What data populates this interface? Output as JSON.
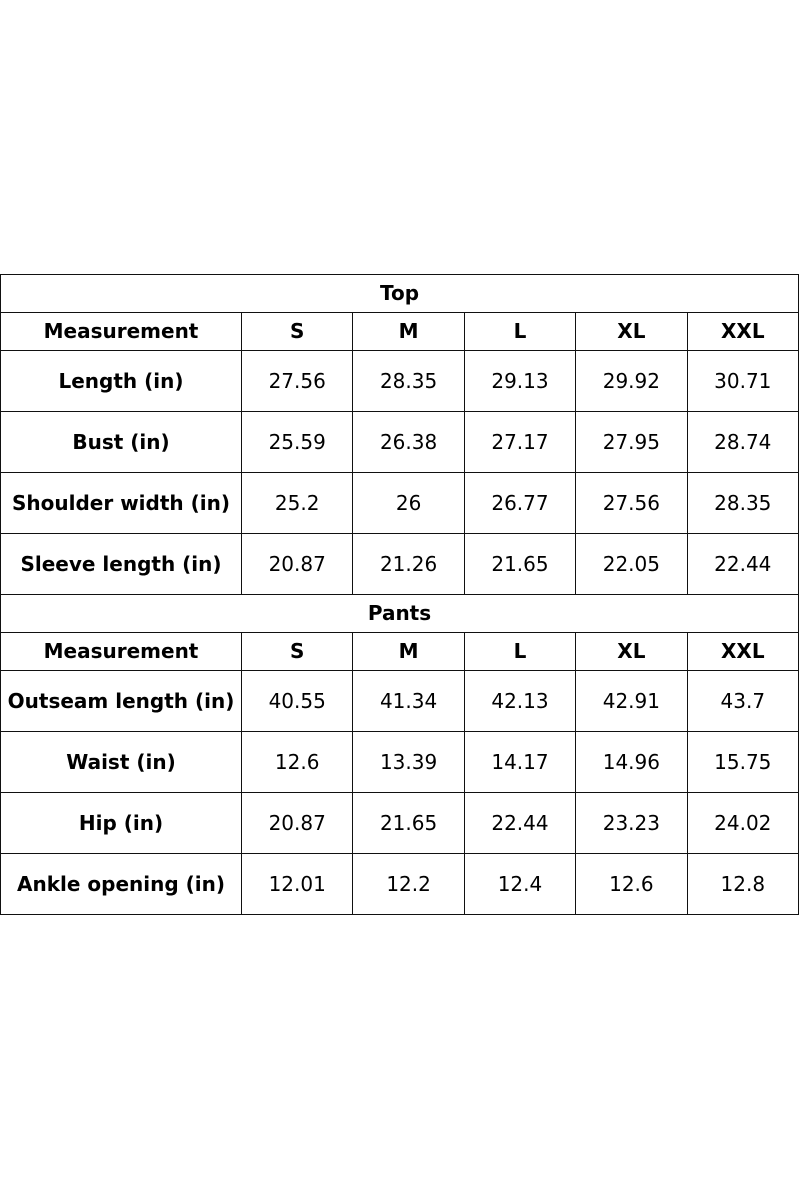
{
  "sections": [
    {
      "title": "Top",
      "header": [
        "Measurement",
        "S",
        "M",
        "L",
        "XL",
        "XXL"
      ],
      "rows": [
        [
          "Length (in)",
          27.56,
          28.35,
          29.13,
          29.92,
          30.71
        ],
        [
          "Bust (in)",
          25.59,
          26.38,
          27.17,
          27.95,
          28.74
        ],
        [
          "Shoulder width (in)",
          25.2,
          26,
          26.77,
          27.56,
          28.35
        ],
        [
          "Sleeve length (in)",
          20.87,
          21.26,
          21.65,
          22.05,
          22.44
        ]
      ]
    },
    {
      "title": "Pants",
      "header": [
        "Measurement",
        "S",
        "M",
        "L",
        "XL",
        "XXL"
      ],
      "rows": [
        [
          "Outseam length (in)",
          40.55,
          41.34,
          42.13,
          42.91,
          43.7
        ],
        [
          "Waist (in)",
          12.6,
          13.39,
          14.17,
          14.96,
          15.75
        ],
        [
          "Hip (in)",
          20.87,
          21.65,
          22.44,
          23.23,
          24.02
        ],
        [
          "Ankle opening (in)",
          12.01,
          12.2,
          12.4,
          12.6,
          12.8
        ]
      ]
    }
  ]
}
